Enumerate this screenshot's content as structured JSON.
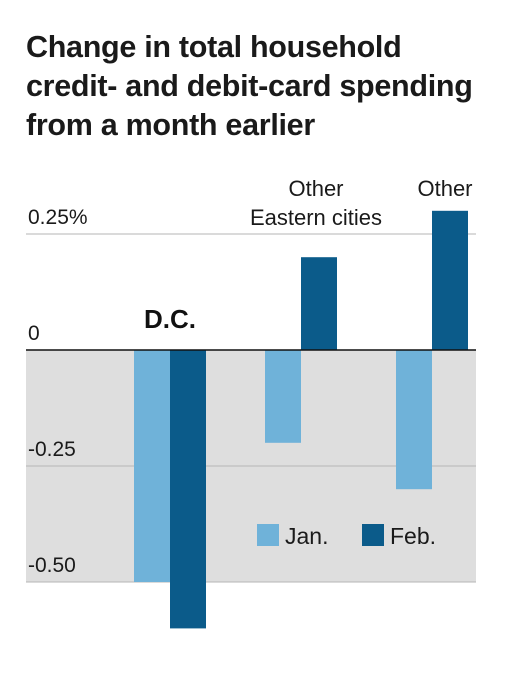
{
  "chart_data": {
    "type": "bar",
    "title_lines": [
      "Change in total household",
      "credit- and debit-card spending",
      "from a month earlier"
    ],
    "categories": [
      {
        "lines": [
          "D.C."
        ],
        "bold": true
      },
      {
        "lines": [
          "Other",
          "Eastern cities"
        ],
        "bold": false
      },
      {
        "lines": [
          "Other"
        ],
        "bold": false
      }
    ],
    "series": [
      {
        "name": "Jan.",
        "color": "#6fb2d9",
        "values": [
          -0.5,
          -0.2,
          -0.3
        ]
      },
      {
        "name": "Feb.",
        "color": "#0b5b8a",
        "values": [
          -0.6,
          0.2,
          0.3
        ]
      }
    ],
    "yticks": [
      {
        "value": 0.25,
        "label": "0.25%"
      },
      {
        "value": 0,
        "label": "0"
      },
      {
        "value": -0.25,
        "label": "-0.25"
      },
      {
        "value": -0.5,
        "label": "-0.50"
      }
    ],
    "ylim": [
      -0.6,
      0.3
    ],
    "negative_shading": "#dedede",
    "grid": true,
    "legend_position": "bottom-right"
  }
}
